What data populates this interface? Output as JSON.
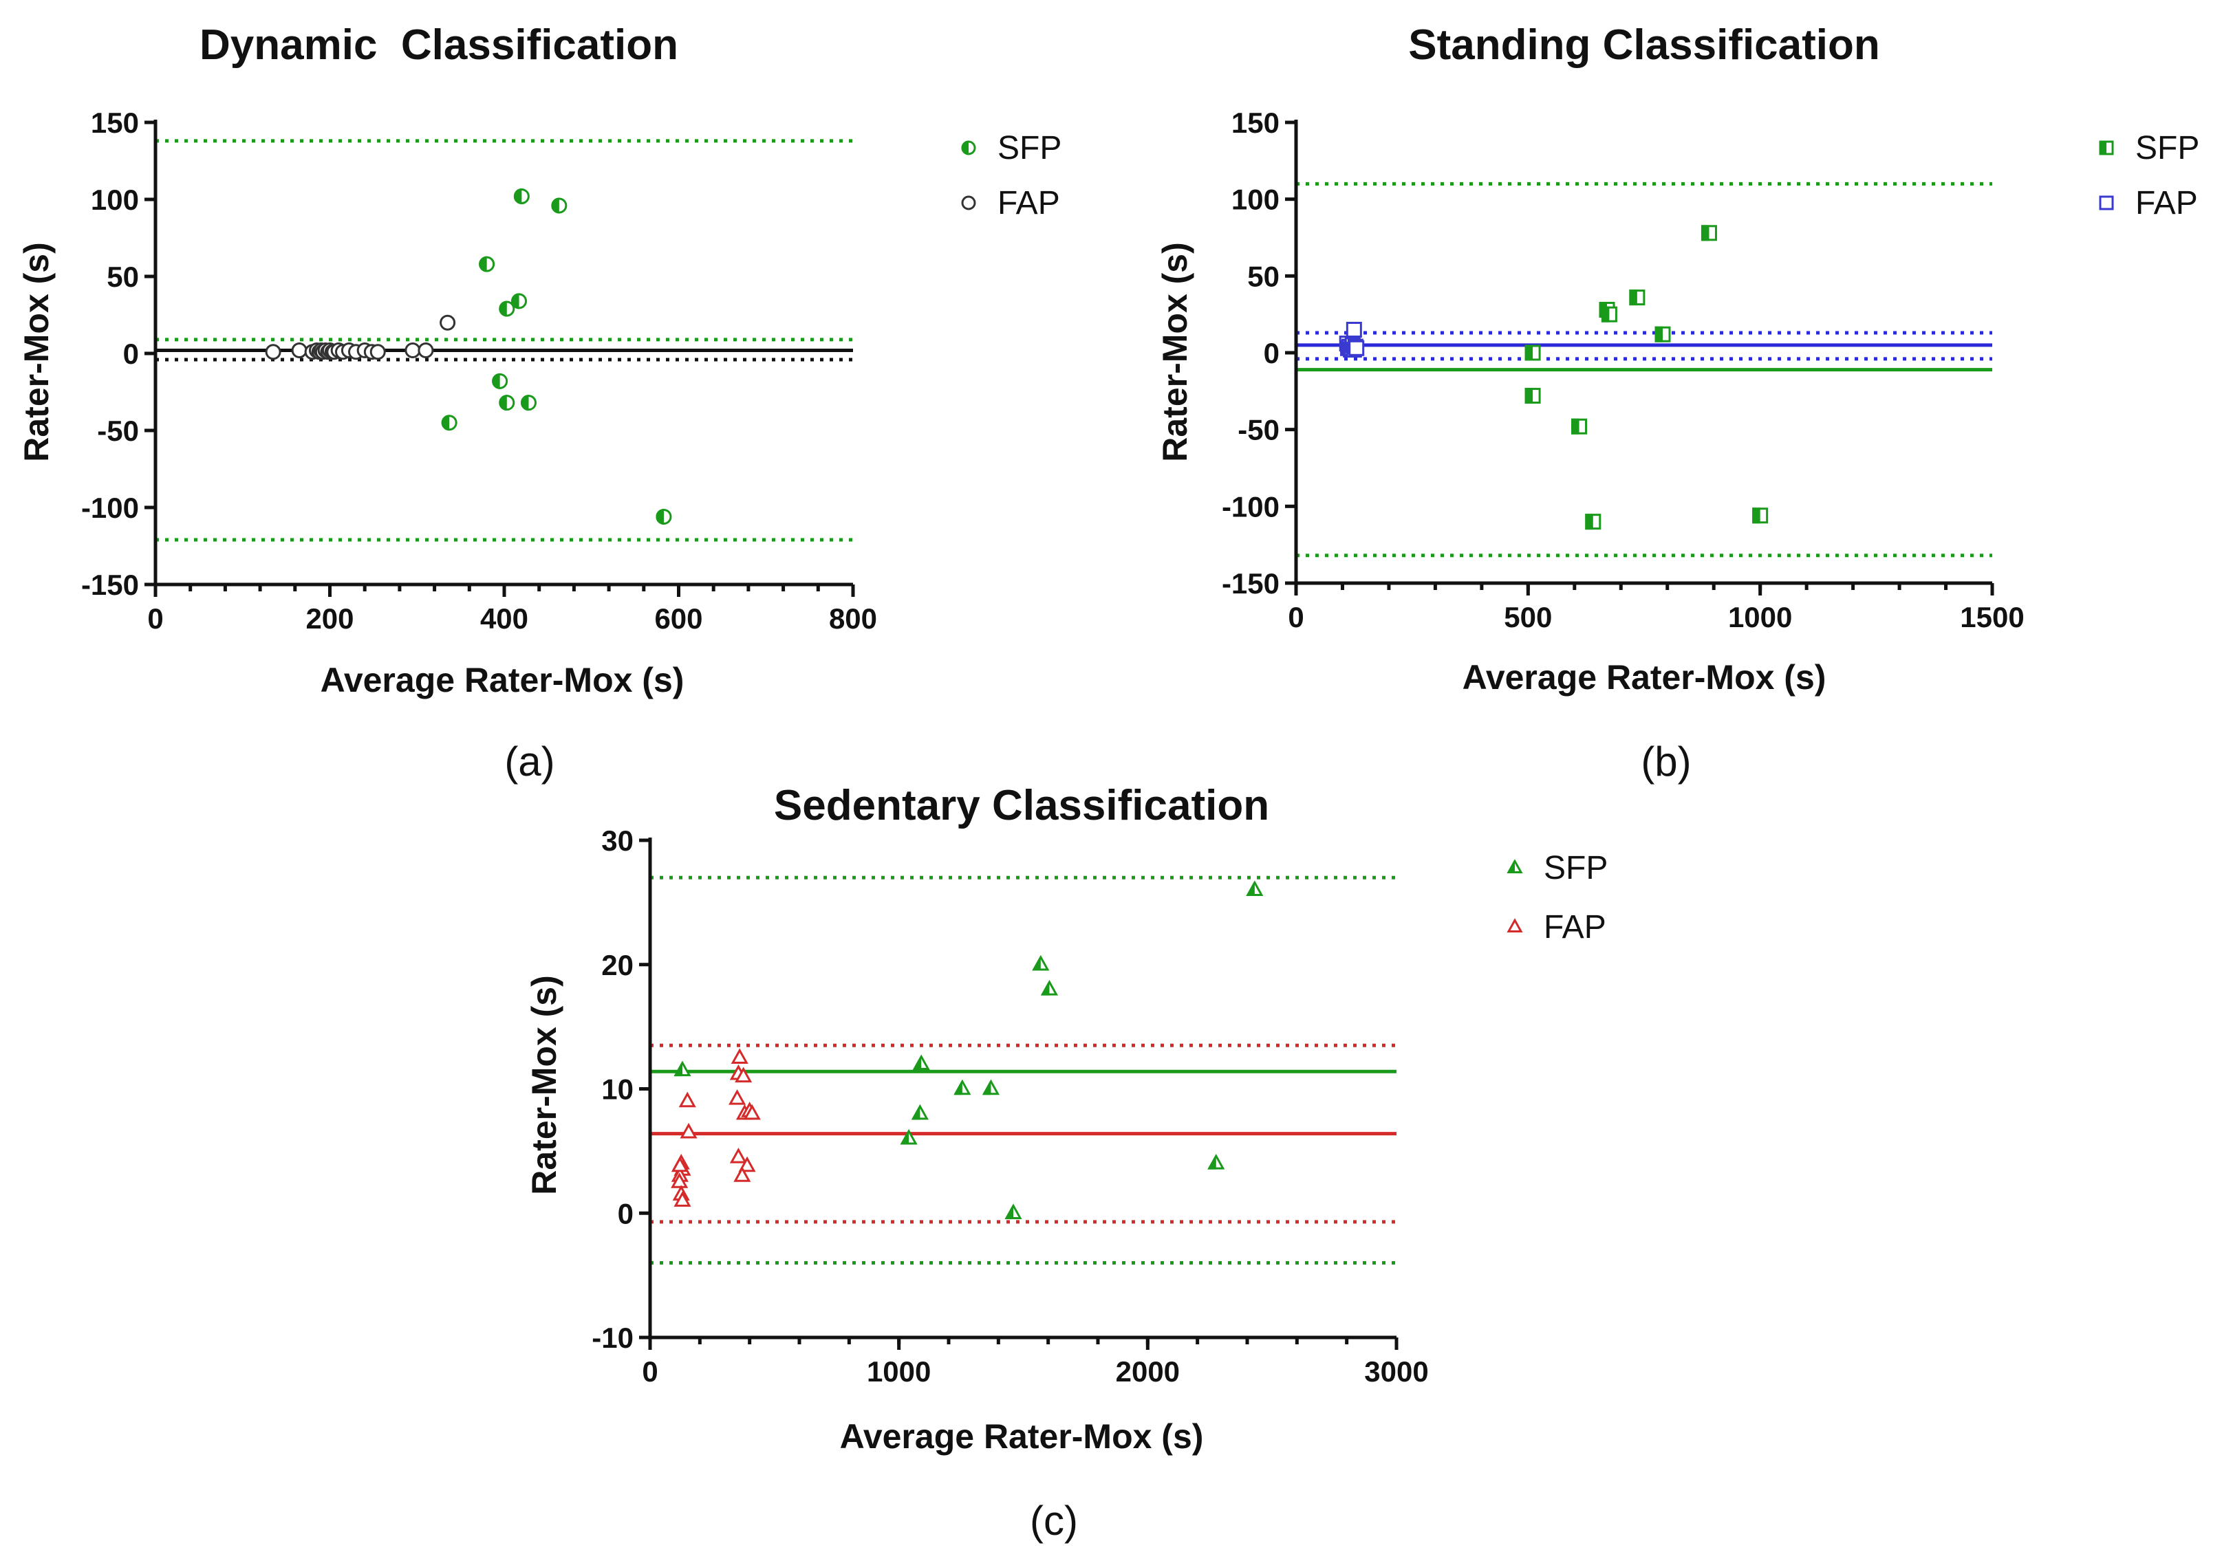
{
  "chart_data": [
    {
      "type": "scatter",
      "panel": "a",
      "caption": "(a)",
      "title": "Dynamic  Classification",
      "xlabel": "Average Rater-Mox (s)",
      "ylabel": "Rater-Mox (s)",
      "xlim": [
        0,
        800
      ],
      "ylim": [
        -150,
        150
      ],
      "xticks": [
        0,
        200,
        400,
        600,
        800
      ],
      "yticks": [
        -150,
        -100,
        -50,
        0,
        50,
        100,
        150
      ],
      "xminor_step": 40,
      "marker": "circle",
      "legend_position": "right",
      "series": [
        {
          "name": "SFP",
          "color": "#1a9a1a",
          "fill": "half",
          "x": [
            420,
            463,
            380,
            417,
            403,
            395,
            403,
            428,
            337,
            583
          ],
          "y": [
            102,
            96,
            58,
            34,
            29,
            -18,
            -32,
            -32,
            -45,
            -106
          ]
        },
        {
          "name": "FAP",
          "color": "#333333",
          "fill": "hollow",
          "x": [
            135,
            165,
            180,
            185,
            188,
            190,
            192,
            195,
            198,
            200,
            203,
            205,
            210,
            215,
            222,
            230,
            240,
            248,
            255,
            295,
            310,
            335
          ],
          "y": [
            1,
            2,
            1,
            2,
            1,
            2,
            1,
            2,
            1,
            2,
            1,
            1,
            2,
            1,
            2,
            1,
            2,
            1,
            1,
            2,
            2,
            20
          ]
        }
      ],
      "lines": [
        {
          "y": 138,
          "color": "#1a9a1a",
          "style": "dotted"
        },
        {
          "y": 9,
          "color": "#1a9a1a",
          "style": "dotted"
        },
        {
          "y": 2,
          "color": "#1a9a1a",
          "style": "solid"
        },
        {
          "y": -121,
          "color": "#1a9a1a",
          "style": "dotted"
        },
        {
          "y": 2,
          "color": "#111111",
          "style": "solid"
        },
        {
          "y": -4,
          "color": "#111111",
          "style": "dotted"
        }
      ]
    },
    {
      "type": "scatter",
      "panel": "b",
      "caption": "(b)",
      "title": "Standing Classification",
      "xlabel": "Average Rater-Mox (s)",
      "ylabel": "Rater-Mox (s)",
      "xlim": [
        0,
        1500
      ],
      "ylim": [
        -150,
        150
      ],
      "xticks": [
        0,
        500,
        1000,
        1500
      ],
      "yticks": [
        -150,
        -100,
        -50,
        0,
        50,
        100,
        150
      ],
      "xminor_step": 100,
      "marker": "square",
      "legend_position": "right",
      "series": [
        {
          "name": "SFP",
          "color": "#1a9a1a",
          "fill": "half",
          "x": [
            890,
            735,
            670,
            675,
            790,
            510,
            510,
            610,
            1000,
            640
          ],
          "y": [
            78,
            36,
            28,
            25,
            12,
            0,
            -28,
            -48,
            -106,
            -110
          ]
        },
        {
          "name": "FAP",
          "color": "#3a3ad0",
          "fill": "hollow",
          "x": [
            125,
            110,
            112,
            115,
            118,
            120,
            122,
            125,
            128,
            130
          ],
          "y": [
            15,
            6,
            3,
            4,
            2,
            3,
            5,
            2,
            4,
            3
          ]
        }
      ],
      "lines": [
        {
          "y": 110,
          "color": "#1a9a1a",
          "style": "dotted"
        },
        {
          "y": -11,
          "color": "#1a9a1a",
          "style": "solid"
        },
        {
          "y": -132,
          "color": "#1a9a1a",
          "style": "dotted"
        },
        {
          "y": 13,
          "color": "#2a2ad8",
          "style": "dotted"
        },
        {
          "y": 5,
          "color": "#2a2ad8",
          "style": "solid"
        },
        {
          "y": -4,
          "color": "#2a2ad8",
          "style": "dotted"
        }
      ]
    },
    {
      "type": "scatter",
      "panel": "c",
      "caption": "(c)",
      "title": "Sedentary Classification",
      "xlabel": "Average Rater-Mox (s)",
      "ylabel": "Rater-Mox (s)",
      "xlim": [
        0,
        3000
      ],
      "ylim": [
        -10,
        30
      ],
      "xticks": [
        0,
        1000,
        2000,
        3000
      ],
      "yticks": [
        -10,
        0,
        10,
        20,
        30
      ],
      "xminor_step": 200,
      "marker": "triangle",
      "legend_position": "right",
      "series": [
        {
          "name": "SFP",
          "color": "#1a9a1a",
          "fill": "half",
          "x": [
            2430,
            1570,
            1605,
            1090,
            1255,
            1370,
            1085,
            1040,
            2275,
            1460,
            130
          ],
          "y": [
            26,
            20,
            18,
            12,
            10,
            10,
            8,
            6,
            4,
            0,
            11.5
          ]
        },
        {
          "name": "FAP",
          "color": "#d42a2a",
          "fill": "hollow",
          "x": [
            150,
            155,
            125,
            130,
            120,
            118,
            125,
            130,
            120,
            360,
            355,
            375,
            350,
            380,
            400,
            410,
            355,
            390,
            370
          ],
          "y": [
            9,
            6.5,
            4,
            3.5,
            3,
            2.5,
            1.5,
            1,
            3.8,
            12.5,
            11.2,
            11,
            9.2,
            8,
            8.2,
            8,
            4.5,
            3.8,
            3
          ]
        }
      ],
      "lines": [
        {
          "y": 27,
          "color": "#1a9a1a",
          "style": "dotted"
        },
        {
          "y": 11.4,
          "color": "#1a9a1a",
          "style": "solid"
        },
        {
          "y": -4,
          "color": "#1a9a1a",
          "style": "dotted"
        },
        {
          "y": 13.5,
          "color": "#d42a2a",
          "style": "dotted"
        },
        {
          "y": 6.4,
          "color": "#d42a2a",
          "style": "solid"
        },
        {
          "y": -0.7,
          "color": "#d42a2a",
          "style": "dotted"
        }
      ]
    }
  ]
}
